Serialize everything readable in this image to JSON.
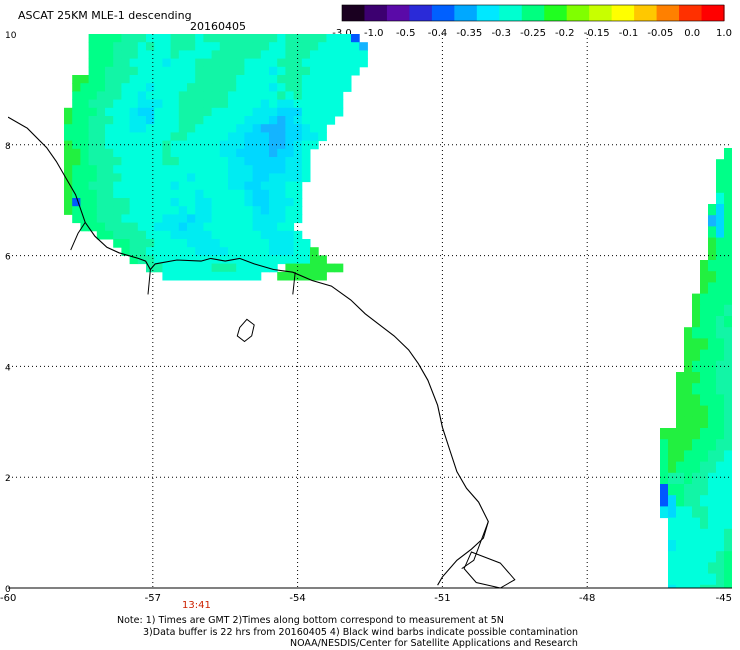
{
  "title": "ASCAT 25KM MLE-1 descending",
  "date": "20160405",
  "colorbar": {
    "tick_labels": [
      "-3.0",
      "-1.0",
      "-0.5",
      "-0.4",
      "-0.35",
      "-0.3",
      "-0.25",
      "-0.2",
      "-0.15",
      "-0.1",
      "-0.05",
      "0.0",
      "1.0"
    ],
    "colors": [
      "#1a0020",
      "#3c0070",
      "#5a0aa8",
      "#2a2ad8",
      "#0060ff",
      "#00a8ff",
      "#00e8ff",
      "#00ffd0",
      "#00ff80",
      "#20ff20",
      "#80ff00",
      "#c8ff00",
      "#ffff00",
      "#ffc800",
      "#ff8000",
      "#ff3000",
      "#ff0000"
    ]
  },
  "map": {
    "lon_labels": [
      "-60",
      "-57",
      "-54",
      "-51",
      "-48",
      "-45"
    ],
    "lat_labels": [
      "10",
      "8",
      "6",
      "4",
      "2",
      "0"
    ],
    "lon_range": [
      -60,
      -45
    ],
    "lat_range": [
      0,
      10
    ],
    "gridlines": "dotted"
  },
  "time_marker": "13:41",
  "notes": [
    "Note: 1) Times are GMT 2)Times along bottom correspond to measurement at 5N",
    "3)Data buffer is 22 hrs from 20160405 4) Black wind barbs indicate possible contamination",
    "NOAA/NESDIS/Center for Satellite Applications and Research"
  ]
}
